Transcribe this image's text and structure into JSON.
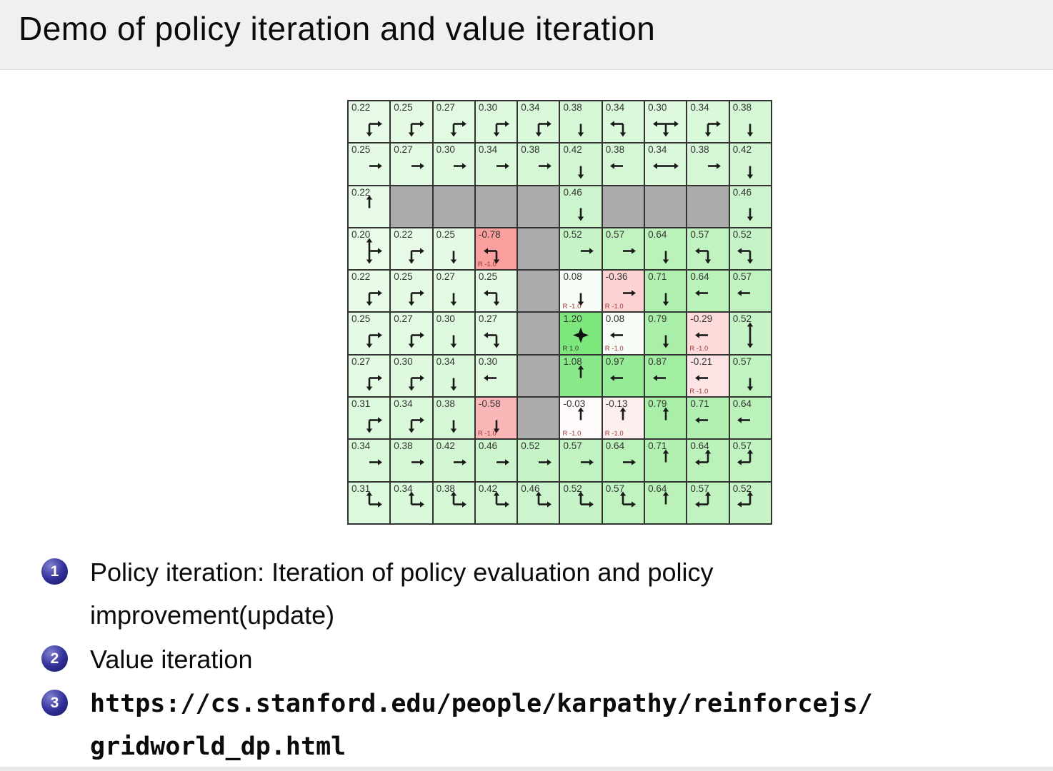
{
  "slide": {
    "title": "Demo of policy iteration and value iteration",
    "bullets": [
      {
        "number": "1",
        "text": "Policy iteration: Iteration of policy evaluation and policy improvement(update)",
        "mono": false
      },
      {
        "number": "2",
        "text": "Value iteration",
        "mono": false
      },
      {
        "number": "3",
        "text": "https://cs.stanford.edu/people/karpathy/reinforcejs/gridworld_dp.html",
        "mono": true
      }
    ]
  },
  "palette": {
    "title_bar_bg": "#f0f0f0",
    "wall_gray": "#ababab",
    "grid_line": "#333333",
    "max_positive_green": "#7de67d",
    "max_negative_red": "#fa9d9d",
    "value_text": "#333333",
    "reward_negative_text": "#993333",
    "reward_positive_text": "#333333",
    "arrow_black": "#1a1a1a",
    "badge_blue": "#32329b"
  },
  "gridworld": {
    "rows": 10,
    "cols": 10,
    "reward_label_prefix": "R",
    "cells": [
      [
        {
          "v": 0.22,
          "d": [
            "down",
            "right"
          ]
        },
        {
          "v": 0.25,
          "d": [
            "down",
            "right"
          ]
        },
        {
          "v": 0.27,
          "d": [
            "down",
            "right"
          ]
        },
        {
          "v": 0.3,
          "d": [
            "down",
            "right"
          ]
        },
        {
          "v": 0.34,
          "d": [
            "down",
            "right"
          ]
        },
        {
          "v": 0.38,
          "d": [
            "down"
          ]
        },
        {
          "v": 0.34,
          "d": [
            "left",
            "down"
          ]
        },
        {
          "v": 0.3,
          "d": [
            "left",
            "down",
            "right"
          ]
        },
        {
          "v": 0.34,
          "d": [
            "down",
            "right"
          ]
        },
        {
          "v": 0.38,
          "d": [
            "down"
          ]
        }
      ],
      [
        {
          "v": 0.25,
          "d": [
            "right"
          ]
        },
        {
          "v": 0.27,
          "d": [
            "right"
          ]
        },
        {
          "v": 0.3,
          "d": [
            "right"
          ]
        },
        {
          "v": 0.34,
          "d": [
            "right"
          ]
        },
        {
          "v": 0.38,
          "d": [
            "right"
          ]
        },
        {
          "v": 0.42,
          "d": [
            "down"
          ]
        },
        {
          "v": 0.38,
          "d": [
            "left"
          ]
        },
        {
          "v": 0.34,
          "d": [
            "left",
            "right"
          ]
        },
        {
          "v": 0.38,
          "d": [
            "right"
          ]
        },
        {
          "v": 0.42,
          "d": [
            "down"
          ]
        }
      ],
      [
        {
          "v": 0.22,
          "d": [
            "up"
          ]
        },
        {
          "wall": true
        },
        {
          "wall": true
        },
        {
          "wall": true
        },
        {
          "wall": true
        },
        {
          "v": 0.46,
          "d": [
            "down"
          ]
        },
        {
          "wall": true
        },
        {
          "wall": true
        },
        {
          "wall": true
        },
        {
          "v": 0.46,
          "d": [
            "down"
          ]
        }
      ],
      [
        {
          "v": 0.2,
          "d": [
            "up",
            "down",
            "right"
          ]
        },
        {
          "v": 0.22,
          "d": [
            "down",
            "right"
          ]
        },
        {
          "v": 0.25,
          "d": [
            "down"
          ]
        },
        {
          "v": -0.78,
          "d": [
            "left",
            "down"
          ],
          "r": -1.0
        },
        {
          "wall": true
        },
        {
          "v": 0.52,
          "d": [
            "right"
          ]
        },
        {
          "v": 0.57,
          "d": [
            "right"
          ]
        },
        {
          "v": 0.64,
          "d": [
            "down"
          ]
        },
        {
          "v": 0.57,
          "d": [
            "left",
            "down"
          ]
        },
        {
          "v": 0.52,
          "d": [
            "left",
            "down"
          ]
        }
      ],
      [
        {
          "v": 0.22,
          "d": [
            "down",
            "right"
          ]
        },
        {
          "v": 0.25,
          "d": [
            "down",
            "right"
          ]
        },
        {
          "v": 0.27,
          "d": [
            "down"
          ]
        },
        {
          "v": 0.25,
          "d": [
            "left",
            "down"
          ]
        },
        {
          "wall": true
        },
        {
          "v": 0.08,
          "d": [
            "down"
          ],
          "r": -1.0
        },
        {
          "v": -0.36,
          "d": [
            "right"
          ],
          "r": -1.0
        },
        {
          "v": 0.71,
          "d": [
            "down"
          ]
        },
        {
          "v": 0.64,
          "d": [
            "left"
          ]
        },
        {
          "v": 0.57,
          "d": [
            "left"
          ]
        }
      ],
      [
        {
          "v": 0.25,
          "d": [
            "down",
            "right"
          ]
        },
        {
          "v": 0.27,
          "d": [
            "down",
            "right"
          ]
        },
        {
          "v": 0.3,
          "d": [
            "down"
          ]
        },
        {
          "v": 0.27,
          "d": [
            "left",
            "down"
          ]
        },
        {
          "wall": true
        },
        {
          "v": 1.2,
          "term": true,
          "r": 1.0
        },
        {
          "v": 0.08,
          "d": [
            "left"
          ],
          "r": -1.0
        },
        {
          "v": 0.79,
          "d": [
            "down"
          ]
        },
        {
          "v": -0.29,
          "d": [
            "left"
          ],
          "r": -1.0
        },
        {
          "v": 0.52,
          "d": [
            "up",
            "down"
          ]
        }
      ],
      [
        {
          "v": 0.27,
          "d": [
            "down",
            "right"
          ]
        },
        {
          "v": 0.3,
          "d": [
            "down",
            "right"
          ]
        },
        {
          "v": 0.34,
          "d": [
            "down"
          ]
        },
        {
          "v": 0.3,
          "d": [
            "left"
          ]
        },
        {
          "wall": true
        },
        {
          "v": 1.08,
          "d": [
            "up"
          ]
        },
        {
          "v": 0.97,
          "d": [
            "left"
          ]
        },
        {
          "v": 0.87,
          "d": [
            "left"
          ]
        },
        {
          "v": -0.21,
          "d": [
            "left"
          ],
          "r": -1.0
        },
        {
          "v": 0.57,
          "d": [
            "down"
          ]
        }
      ],
      [
        {
          "v": 0.31,
          "d": [
            "down",
            "right"
          ]
        },
        {
          "v": 0.34,
          "d": [
            "down",
            "right"
          ]
        },
        {
          "v": 0.38,
          "d": [
            "down"
          ]
        },
        {
          "v": -0.58,
          "d": [
            "down"
          ],
          "r": -1.0
        },
        {
          "wall": true
        },
        {
          "v": -0.03,
          "d": [
            "up"
          ],
          "r": -1.0
        },
        {
          "v": -0.13,
          "d": [
            "up"
          ],
          "r": -1.0
        },
        {
          "v": 0.79,
          "d": [
            "up"
          ]
        },
        {
          "v": 0.71,
          "d": [
            "left"
          ]
        },
        {
          "v": 0.64,
          "d": [
            "left"
          ]
        }
      ],
      [
        {
          "v": 0.34,
          "d": [
            "right"
          ]
        },
        {
          "v": 0.38,
          "d": [
            "right"
          ]
        },
        {
          "v": 0.42,
          "d": [
            "right"
          ]
        },
        {
          "v": 0.46,
          "d": [
            "right"
          ]
        },
        {
          "v": 0.52,
          "d": [
            "right"
          ]
        },
        {
          "v": 0.57,
          "d": [
            "right"
          ]
        },
        {
          "v": 0.64,
          "d": [
            "right"
          ]
        },
        {
          "v": 0.71,
          "d": [
            "up"
          ]
        },
        {
          "v": 0.64,
          "d": [
            "up",
            "left"
          ]
        },
        {
          "v": 0.57,
          "d": [
            "up",
            "left"
          ]
        }
      ],
      [
        {
          "v": 0.31,
          "d": [
            "up",
            "right"
          ]
        },
        {
          "v": 0.34,
          "d": [
            "up",
            "right"
          ]
        },
        {
          "v": 0.38,
          "d": [
            "up",
            "right"
          ]
        },
        {
          "v": 0.42,
          "d": [
            "up",
            "right"
          ]
        },
        {
          "v": 0.46,
          "d": [
            "up",
            "right"
          ]
        },
        {
          "v": 0.52,
          "d": [
            "up",
            "right"
          ]
        },
        {
          "v": 0.57,
          "d": [
            "up",
            "right"
          ]
        },
        {
          "v": 0.64,
          "d": [
            "up"
          ]
        },
        {
          "v": 0.57,
          "d": [
            "up",
            "left"
          ]
        },
        {
          "v": 0.52,
          "d": [
            "up",
            "left"
          ]
        }
      ]
    ]
  }
}
